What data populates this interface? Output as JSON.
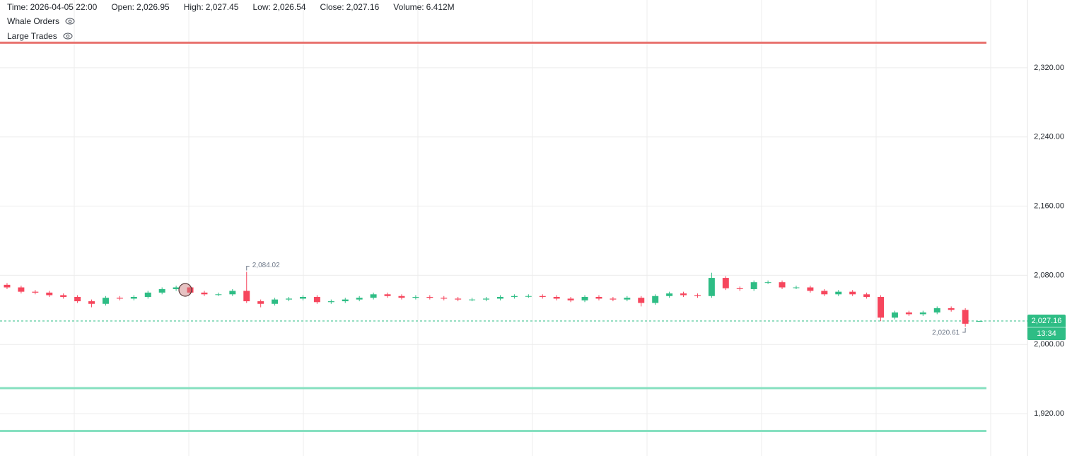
{
  "chart_data": {
    "type": "candlestick",
    "info": [
      {
        "key": "Time:",
        "value": "2026-04-05 22:00"
      },
      {
        "key": "Open:",
        "value": "2,026.95"
      },
      {
        "key": "High:",
        "value": "2,027.45"
      },
      {
        "key": "Low:",
        "value": "2,026.54"
      },
      {
        "key": "Close:",
        "value": "2,027.16"
      },
      {
        "key": "Volume:",
        "value": "6.412M"
      }
    ],
    "indicators": [
      "Whale Orders",
      "Large Trades"
    ],
    "ylim": [
      1871,
      2398.4
    ],
    "yticks": [
      {
        "value": 1920,
        "label": "1,920.00"
      },
      {
        "value": 2000,
        "label": "2,000.00"
      },
      {
        "value": 2080,
        "label": "2,080.00"
      },
      {
        "value": 2160,
        "label": "2,160.00"
      },
      {
        "value": 2240,
        "label": "2,240.00"
      },
      {
        "value": 2320,
        "label": "2,320.00"
      }
    ],
    "grid": true,
    "up_color": "#2ebd85",
    "down_color": "#f6465d",
    "series": [
      {
        "open": [
          2069,
          2066,
          2061,
          2060,
          2057,
          2055,
          2050,
          2047,
          2054,
          2053,
          2055,
          2060,
          2064,
          2066,
          2060,
          2058,
          2058,
          2062,
          2050,
          2047,
          2052,
          2053,
          2055,
          2049,
          2050,
          2052,
          2054,
          2058,
          2056,
          2054,
          2055,
          2054,
          2053,
          2052,
          2052,
          2053,
          2055,
          2056,
          2056,
          2055,
          2053,
          2051,
          2055,
          2053,
          2052,
          2054,
          2048,
          2056,
          2059,
          2057,
          2056,
          2077,
          2065,
          2064,
          2072,
          2072,
          2066,
          2066,
          2062,
          2058,
          2061,
          2058,
          2055,
          2031,
          2037,
          2035,
          2037,
          2042,
          2040,
          2026.95
        ],
        "high": [
          2071,
          2068,
          2063,
          2062,
          2059,
          2057,
          2052,
          2056,
          2056,
          2057,
          2062,
          2066,
          2068,
          2068,
          2062,
          2060,
          2064,
          2084.02,
          2052,
          2054,
          2055,
          2057,
          2057,
          2052,
          2054,
          2056,
          2060,
          2060,
          2058,
          2057,
          2057,
          2056,
          2055,
          2054,
          2055,
          2057,
          2058,
          2058,
          2058,
          2057,
          2055,
          2057,
          2057,
          2055,
          2056,
          2056,
          2058,
          2061,
          2061,
          2059,
          2083,
          2079,
          2067,
          2074,
          2074,
          2074,
          2068,
          2068,
          2064,
          2063,
          2063,
          2060,
          2057,
          2039,
          2039,
          2039,
          2044,
          2044,
          2042,
          2027.45
        ],
        "low": [
          2064,
          2059,
          2058,
          2055,
          2053,
          2048,
          2043,
          2045,
          2051,
          2051,
          2053,
          2058,
          2062,
          2058,
          2056,
          2056,
          2056,
          2048,
          2043,
          2045,
          2050,
          2051,
          2047,
          2047,
          2048,
          2050,
          2052,
          2054,
          2052,
          2052,
          2052,
          2051,
          2050,
          2050,
          2050,
          2051,
          2053,
          2054,
          2053,
          2051,
          2049,
          2049,
          2051,
          2050,
          2050,
          2044,
          2046,
          2054,
          2055,
          2054,
          2054,
          2063,
          2062,
          2062,
          2070,
          2064,
          2064,
          2060,
          2056,
          2056,
          2056,
          2053,
          2027,
          2029,
          2033,
          2033,
          2035,
          2038,
          2020.61,
          2026.54
        ],
        "close": [
          2066,
          2061,
          2060,
          2057,
          2055,
          2050,
          2047,
          2054,
          2053,
          2055,
          2060,
          2064,
          2066,
          2060,
          2058,
          2058,
          2062,
          2050,
          2047,
          2052,
          2053,
          2055,
          2049,
          2050,
          2052,
          2054,
          2058,
          2056,
          2054,
          2055,
          2054,
          2053,
          2052,
          2052,
          2053,
          2055,
          2056,
          2056,
          2055,
          2053,
          2051,
          2055,
          2053,
          2052,
          2054,
          2048,
          2056,
          2059,
          2057,
          2056,
          2077,
          2065,
          2064,
          2072,
          2072,
          2066,
          2066,
          2062,
          2058,
          2061,
          2058,
          2055,
          2031,
          2037,
          2035,
          2037,
          2042,
          2040,
          2024,
          2027.16
        ]
      }
    ],
    "max_label": "2,084.02",
    "min_label": "2,020.61",
    "levels": [
      {
        "value": 2349,
        "color": "#e8736f"
      },
      {
        "value": 1949.5,
        "color": "#86e0c0"
      },
      {
        "value": 1900,
        "color": "#86e0c0"
      }
    ],
    "last_price": {
      "value": 2027.16,
      "label": "2,027.16"
    },
    "countdown": "13:34"
  }
}
